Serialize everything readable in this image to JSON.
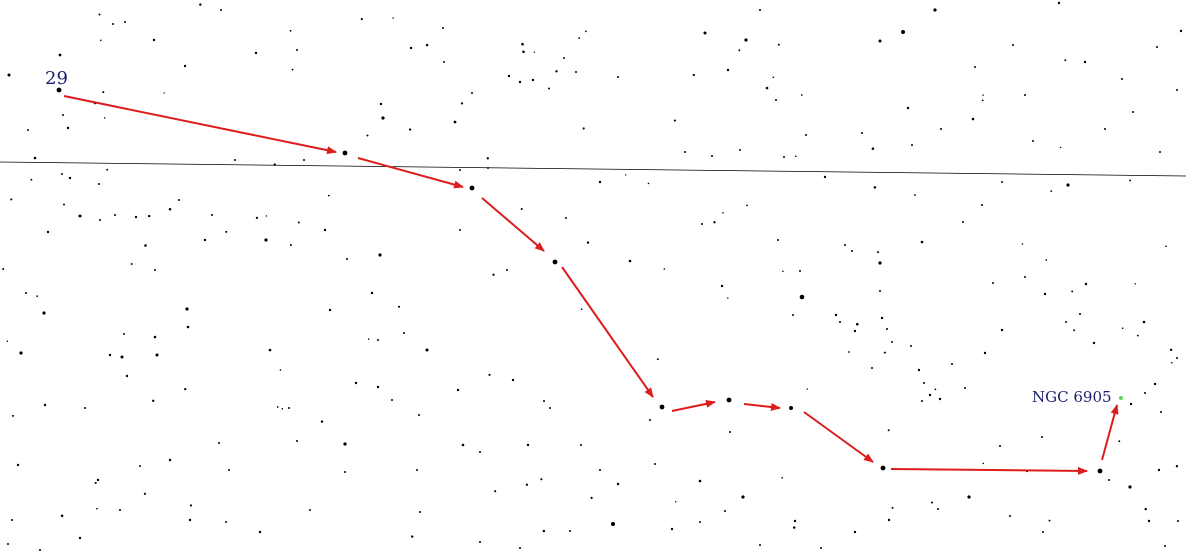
{
  "chart": {
    "start_label": "29",
    "target_label": "NGC 6905",
    "colors": {
      "background": "#ffffff",
      "stars": "#000000",
      "path_arrows": "#dd1c1c",
      "label_text": "#1b1f6e",
      "target_marker": "#5fd35f",
      "reference_line": "#000000"
    }
  }
}
